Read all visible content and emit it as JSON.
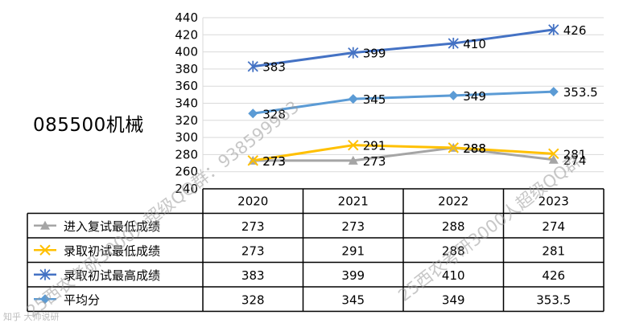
{
  "page_title": "085500机械",
  "watermark_left": "25西农考研3000人超级QQ群：938599963",
  "watermark_right": "25西农考研3000人超级QQ群：",
  "footer_mark": "知乎 大帅说研",
  "colors": {
    "retest_min": "#a5a5a5",
    "admit_min": "#ffc000",
    "admit_max": "#4472c4",
    "average": "#5b9bd5",
    "grid": "#d9d9d9",
    "border": "#000000"
  },
  "chart_data": {
    "type": "line",
    "title": "",
    "xlabel": "",
    "ylabel": "",
    "categories": [
      "2020",
      "2021",
      "2022",
      "2023"
    ],
    "ylim": [
      240,
      440
    ],
    "yticks": [
      240,
      260,
      280,
      300,
      320,
      340,
      360,
      380,
      400,
      420,
      440
    ],
    "grid": true,
    "legend": "data-table-left",
    "series": [
      {
        "name": "进入复试最低成绩",
        "values": [
          273,
          273,
          288,
          274
        ],
        "value_labels": [
          "273",
          "273",
          "288",
          "274"
        ],
        "marker": "triangle",
        "color": "#a5a5a5"
      },
      {
        "name": "录取初试最低成绩",
        "values": [
          273,
          291,
          288,
          281
        ],
        "value_labels": [
          "273",
          "291",
          "288",
          "281"
        ],
        "marker": "x",
        "color": "#ffc000"
      },
      {
        "name": "录取初试最高成绩",
        "values": [
          383,
          399,
          410,
          426
        ],
        "value_labels": [
          "383",
          "399",
          "410",
          "426"
        ],
        "marker": "star",
        "color": "#4472c4"
      },
      {
        "name": "平均分",
        "values": [
          328,
          345,
          349,
          353.5
        ],
        "value_labels": [
          "328",
          "345",
          "349",
          "353.5"
        ],
        "marker": "diamond",
        "color": "#5b9bd5"
      }
    ]
  }
}
